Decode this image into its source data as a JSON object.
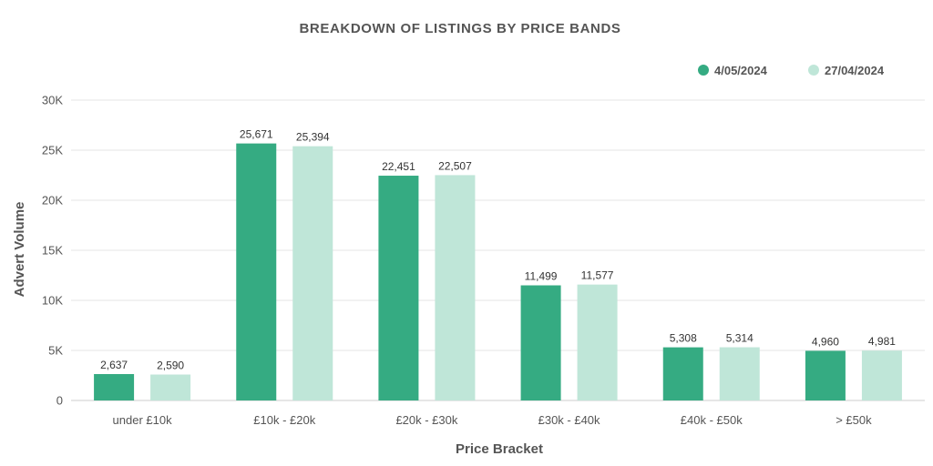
{
  "chart_data": {
    "type": "bar",
    "title": "BREAKDOWN  OF  LISTINGS  BY  PRICE BANDS",
    "xlabel": "Price Bracket",
    "ylabel": "Advert Volume",
    "ylim": [
      0,
      30000
    ],
    "yticks": [
      0,
      5000,
      10000,
      15000,
      20000,
      25000,
      30000
    ],
    "ytick_labels": [
      "0",
      "5K",
      "10K",
      "15K",
      "20K",
      "25K",
      "30K"
    ],
    "grid": true,
    "legend_position": "top-right",
    "categories": [
      "under £10k",
      "£10k - £20k",
      "£20k - £30k",
      "£30k - £40k",
      "£40k - £50k",
      "> £50k"
    ],
    "series": [
      {
        "name": "4/05/2024",
        "color": "#35ab82",
        "values": [
          2637,
          25671,
          22451,
          11499,
          5308,
          4960
        ],
        "labels": [
          "2,637",
          "25,671",
          "22,451",
          "11,499",
          "5,308",
          "4,960"
        ]
      },
      {
        "name": "27/04/2024",
        "color": "#bfe6d8",
        "values": [
          2590,
          25394,
          22507,
          11577,
          5314,
          4981
        ],
        "labels": [
          "2,590",
          "25,394",
          "22,507",
          "11,577",
          "5,314",
          "4,981"
        ]
      }
    ]
  }
}
